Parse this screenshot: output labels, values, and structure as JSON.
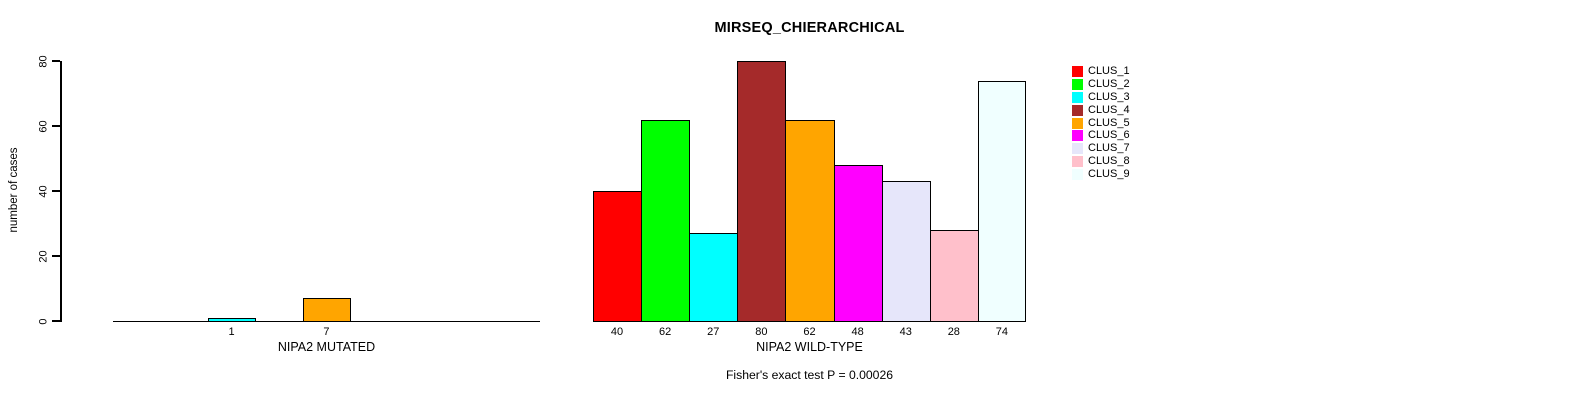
{
  "title": "MIRSEQ_CHIERARCHICAL",
  "footer_note": "Fisher's exact test P = 0.00026",
  "y_axis": {
    "label": "number of cases",
    "ticks": [
      0,
      20,
      40,
      60,
      80
    ],
    "range": [
      0,
      80
    ]
  },
  "legend": {
    "position": "right",
    "items": [
      {
        "label": "CLUS_1",
        "color": "#FF0000"
      },
      {
        "label": "CLUS_2",
        "color": "#00FF00"
      },
      {
        "label": "CLUS_3",
        "color": "#00FFFF"
      },
      {
        "label": "CLUS_4",
        "color": "#A52A2A"
      },
      {
        "label": "CLUS_5",
        "color": "#FFA500"
      },
      {
        "label": "CLUS_6",
        "color": "#FF00FF"
      },
      {
        "label": "CLUS_7",
        "color": "#E6E6FA"
      },
      {
        "label": "CLUS_8",
        "color": "#FFC0CB"
      },
      {
        "label": "CLUS_9",
        "color": "#F0FFFF"
      }
    ]
  },
  "chart_data": [
    {
      "type": "bar",
      "panel": "left",
      "xlabel": "NIPA2 MUTATED",
      "ylabel": "number of cases",
      "ylim": [
        0,
        80
      ],
      "grid": false,
      "categories": [
        "CLUS_1",
        "CLUS_2",
        "CLUS_3",
        "CLUS_4",
        "CLUS_5",
        "CLUS_6",
        "CLUS_7",
        "CLUS_8",
        "CLUS_9"
      ],
      "values": [
        0,
        0,
        1,
        0,
        7,
        0,
        0,
        0,
        0
      ],
      "bar_value_labels": [
        "",
        "",
        "1",
        "",
        "7",
        "",
        "",
        "",
        ""
      ],
      "colors": [
        "#FF0000",
        "#00FF00",
        "#00FFFF",
        "#A52A2A",
        "#FFA500",
        "#FF00FF",
        "#E6E6FA",
        "#FFC0CB",
        "#F0FFFF"
      ]
    },
    {
      "type": "bar",
      "panel": "right",
      "xlabel": "NIPA2 WILD-TYPE",
      "ylabel": "number of cases",
      "ylim": [
        0,
        80
      ],
      "grid": false,
      "categories": [
        "CLUS_1",
        "CLUS_2",
        "CLUS_3",
        "CLUS_4",
        "CLUS_5",
        "CLUS_6",
        "CLUS_7",
        "CLUS_8",
        "CLUS_9"
      ],
      "values": [
        40,
        62,
        27,
        80,
        62,
        48,
        43,
        28,
        74
      ],
      "bar_value_labels": [
        "40",
        "62",
        "27",
        "80",
        "62",
        "48",
        "43",
        "28",
        "74"
      ],
      "colors": [
        "#FF0000",
        "#00FF00",
        "#00FFFF",
        "#A52A2A",
        "#FFA500",
        "#FF00FF",
        "#E6E6FA",
        "#FFC0CB",
        "#F0FFFF"
      ]
    }
  ]
}
